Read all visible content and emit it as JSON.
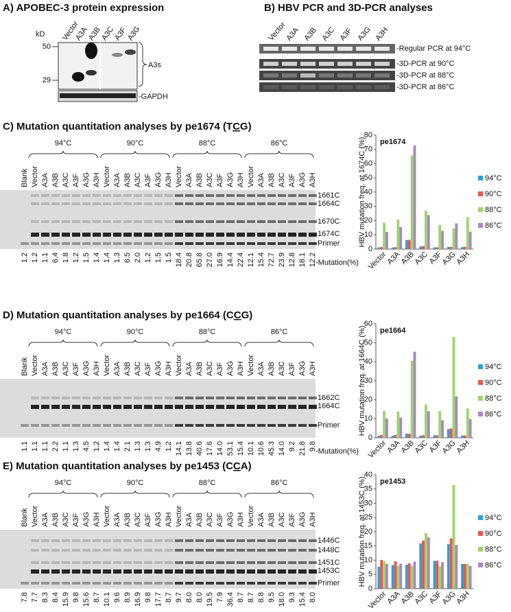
{
  "panel_a": {
    "title": "A)  APOBEC-3 protein expression",
    "unit": "kD",
    "lanes": [
      "Vector",
      "A3A",
      "A3B",
      "A3C",
      "A3F",
      "A3G"
    ],
    "markers": [
      "50",
      "29"
    ],
    "target_label": "A3s",
    "control_label": "-GAPDH"
  },
  "panel_b": {
    "title": "B)  HBV PCR and 3D-PCR analyses",
    "lanes": [
      "Vector",
      "A3A",
      "A3B",
      "A3C",
      "A3F",
      "A3G",
      "A3H"
    ],
    "rows": [
      "-Regular PCR at 94°C",
      "-3D-PCR at 90°C",
      "-3D-PCR at 88°C",
      "-3D-PCR at 86°C"
    ]
  },
  "panels": [
    {
      "title": [
        "C)  Mutation quantitation analyses by pe1674 (T",
        "C",
        "G)"
      ],
      "temperatures": [
        "94°C",
        "90°C",
        "88°C",
        "86°C"
      ],
      "lanes": [
        "Blank",
        "Vector",
        "A3A",
        "A3B",
        "A3C",
        "A3F",
        "A3G",
        "A3H",
        "Vector",
        "A3A",
        "A3B",
        "A3C",
        "A3F",
        "A3G",
        "A3H",
        "Vector",
        "A3A",
        "A3B",
        "A3C",
        "A3F",
        "A3G",
        "A3H",
        "Vector",
        "A3A",
        "A3B",
        "A3C",
        "A3F",
        "A3G",
        "A3H"
      ],
      "bands": [
        "1661C",
        "1664C",
        "1670C",
        "1674C",
        "Primer"
      ],
      "mutation_label": "-Mutation(%)",
      "mutations": [
        "1.2",
        "1.2",
        "1.1",
        "6.4",
        "1.8",
        "1.2",
        "1.5",
        "1.4",
        "1.4",
        "1.3",
        "6.5",
        "2.0",
        "1.2",
        "1.5",
        "1.5",
        "18.4",
        "20.8",
        "65.8",
        "27.0",
        "16.9",
        "14.4",
        "22.4",
        "12.1",
        "15.4",
        "72.7",
        "23.9",
        "12.8",
        "18.1",
        "12.2"
      ],
      "chart": {
        "type": "bar",
        "label": "pe1674",
        "y_label": "HBV mutation freq. at 1674C (%)",
        "categories": [
          "Vector",
          "A3A",
          "A3B",
          "A3C",
          "A3F",
          "A3G",
          "A3H"
        ],
        "series": [
          {
            "name": "94°C",
            "color": "#2f9fd8",
            "values": [
              1.2,
              1.1,
              6.4,
              1.8,
              1.2,
              1.5,
              1.4
            ]
          },
          {
            "name": "90°C",
            "color": "#e8574f",
            "values": [
              1.4,
              1.3,
              6.5,
              2.0,
              1.2,
              1.5,
              1.5
            ]
          },
          {
            "name": "88°C",
            "color": "#9ed46e",
            "values": [
              18.4,
              20.8,
              65.8,
              27.0,
              16.9,
              14.4,
              22.4
            ]
          },
          {
            "name": "86°C",
            "color": "#a985c9",
            "values": [
              12.1,
              15.4,
              72.7,
              23.9,
              12.8,
              18.1,
              12.2
            ]
          }
        ],
        "ylim": [
          0,
          80
        ],
        "yticks": [
          0,
          10,
          20,
          30,
          40,
          50,
          60,
          70,
          80
        ]
      }
    },
    {
      "title": [
        "D)  Mutation quantitation analyses by pe1664 (C",
        "C",
        "G)"
      ],
      "temperatures": [
        "94°C",
        "90°C",
        "88°C",
        "86°C"
      ],
      "lanes": [
        "Blank",
        "Vector",
        "A3A",
        "A3B",
        "A3C",
        "A3F",
        "A3G",
        "A3H",
        "Vector",
        "A3A",
        "A3B",
        "A3C",
        "A3F",
        "A3G",
        "A3H",
        "Vector",
        "A3A",
        "A3B",
        "A3C",
        "A3F",
        "A3G",
        "A3H",
        "Vector",
        "A3A",
        "A3B",
        "A3C",
        "A3F",
        "A3G",
        "A3H"
      ],
      "bands": [
        "1662C",
        "1664C",
        "Primer"
      ],
      "mutation_label": "-Mutation(%)",
      "mutations": [
        "1.1",
        "1.1",
        "1.1",
        "2.2",
        "1.1",
        "1.3",
        "4.5",
        "1.2",
        "1.4",
        "1.4",
        "2.1",
        "1.3",
        "1.3",
        "4.9",
        "1.2",
        "14.1",
        "13.8",
        "40.6",
        "17.6",
        "14.0",
        "53.1",
        "15.4",
        "10.1",
        "10.6",
        "45.3",
        "14.0",
        "9.2",
        "21.8",
        "9.8"
      ],
      "chart": {
        "type": "bar",
        "label": "pe1664",
        "y_label": "HBV mutation freq. at 1664C (%)",
        "categories": [
          "Vector",
          "A3A",
          "A3B",
          "A3C",
          "A3F",
          "A3G",
          "A3H"
        ],
        "series": [
          {
            "name": "94°C",
            "color": "#2f9fd8",
            "values": [
              1.1,
              1.1,
              2.2,
              1.1,
              1.3,
              4.5,
              1.2
            ]
          },
          {
            "name": "90°C",
            "color": "#e8574f",
            "values": [
              1.4,
              1.4,
              2.1,
              1.3,
              1.3,
              4.9,
              1.2
            ]
          },
          {
            "name": "88°C",
            "color": "#9ed46e",
            "values": [
              14.1,
              13.8,
              40.6,
              17.6,
              14.0,
              53.1,
              15.4
            ]
          },
          {
            "name": "86°C",
            "color": "#a985c9",
            "values": [
              10.1,
              10.6,
              45.3,
              14.0,
              9.2,
              21.8,
              9.8
            ]
          }
        ],
        "ylim": [
          0,
          60
        ],
        "yticks": [
          0,
          10,
          20,
          30,
          40,
          50,
          60
        ]
      }
    },
    {
      "title": [
        "E)  Mutation quantitation analyses by pe1453 (C",
        "C",
        "A)"
      ],
      "temperatures": [
        "94°C",
        "90°C",
        "88°C",
        "86°C"
      ],
      "lanes": [
        "Blank",
        "Vector",
        "A3A",
        "A3B",
        "A3C",
        "A3F",
        "A3G",
        "A3H",
        "Vector",
        "A3A",
        "A3B",
        "A3C",
        "A3F",
        "A3G",
        "A3H",
        "Vector",
        "A3A",
        "A3B",
        "A3C",
        "A3F",
        "A3G",
        "A3H",
        "Vector",
        "A3A",
        "A3B",
        "A3C",
        "A3F",
        "A3G",
        "A3H"
      ],
      "bands": [
        "1446C",
        "1448C",
        "1451C",
        "1453C",
        "Primer"
      ],
      "mutation_label": "",
      "mutations": [
        "7.8",
        "7.7",
        "8.3",
        "8.4",
        "15.9",
        "9.8",
        "15.6",
        "8.7",
        "10.1",
        "9.6",
        "8.9",
        "16.9",
        "9.8",
        "17.7",
        "8.7",
        "9.7",
        "8.0",
        "8.0",
        "19.5",
        "7.9",
        "36.4",
        "8.7",
        "8.7",
        "8.8",
        "9.5",
        "18.0",
        "9.3",
        "15.4",
        "8.0"
      ],
      "chart": {
        "type": "bar",
        "label": "pe1453",
        "y_label": "HBV mutation freq. at 1453C (%)",
        "categories": [
          "Vector",
          "A3A",
          "A3B",
          "A3C",
          "A3F",
          "A3G",
          "A3H"
        ],
        "series": [
          {
            "name": "94°C",
            "color": "#2f9fd8",
            "values": [
              7.7,
              8.3,
              8.4,
              15.9,
              9.8,
              15.6,
              8.7
            ]
          },
          {
            "name": "90°C",
            "color": "#e8574f",
            "values": [
              10.1,
              9.6,
              8.9,
              16.9,
              9.8,
              17.7,
              8.7
            ]
          },
          {
            "name": "88°C",
            "color": "#9ed46e",
            "values": [
              9.7,
              8.0,
              8.0,
              19.5,
              7.9,
              36.4,
              8.7
            ]
          },
          {
            "name": "86°C",
            "color": "#a985c9",
            "values": [
              8.7,
              8.8,
              9.5,
              18.0,
              9.3,
              15.4,
              8.0
            ]
          }
        ],
        "ylim": [
          0,
          40
        ],
        "yticks": [
          0,
          5,
          10,
          15,
          20,
          25,
          30,
          35,
          40
        ]
      }
    }
  ]
}
